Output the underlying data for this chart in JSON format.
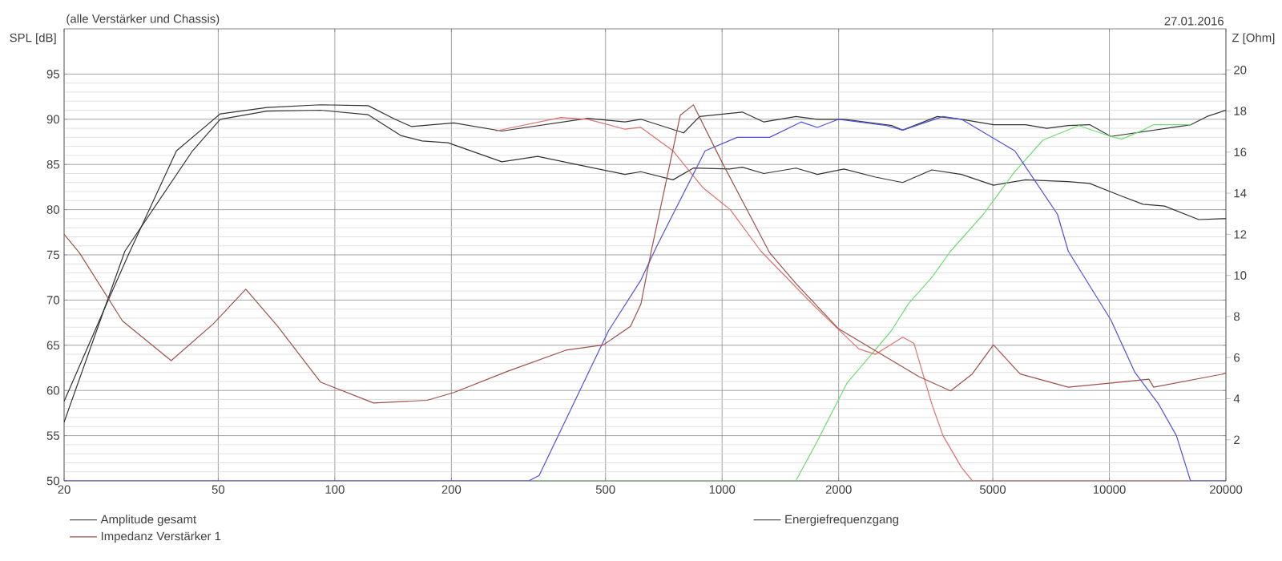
{
  "chart_data": {
    "type": "line",
    "xlabel": null,
    "ylabel": "SPL [dB]",
    "y2label": "Z [Ohm]",
    "annotations": [
      "(alle Verstärker und Chassis)",
      "27.01.2016"
    ],
    "log": "x",
    "grid": true,
    "legend": "bottom",
    "marker": "none",
    "line_style": "solid",
    "xlim": [
      20,
      20000
    ],
    "xticks": [
      20,
      50,
      100,
      200,
      500,
      1000,
      2000,
      5000,
      10000,
      20000
    ],
    "ylim": [
      50,
      100
    ],
    "yticks": [
      50,
      55,
      60,
      65,
      70,
      75,
      80,
      85,
      90,
      95
    ],
    "y2lim": [
      0,
      22
    ],
    "y2ticks": [
      2,
      4,
      6,
      8,
      10,
      12,
      14,
      16,
      18,
      20
    ],
    "series": [
      {
        "name": "Amplitude gesamt",
        "color": "#333333",
        "x": [
          20,
          25.7,
          29.3,
          39,
          50.6,
          66.8,
          91.8,
          122,
          143,
          157.6,
          203,
          270,
          383,
          450,
          561,
          617,
          796,
          875,
          1128,
          1282,
          1552,
          1762,
          2064,
          2748,
          2926,
          3596,
          4150,
          5020,
          6074,
          6892,
          7834,
          8892,
          10092,
          10760,
          12216,
          13012,
          16250,
          17860,
          19660,
          20000
        ],
        "values": [
          58.8,
          69.5,
          75.0,
          86.5,
          90.6,
          91.3,
          91.6,
          91.5,
          90.0,
          89.2,
          89.6,
          88.7,
          null,
          90.1,
          89.7,
          90.0,
          88.5,
          90.3,
          90.8,
          89.7,
          90.3,
          90.0,
          90.0,
          89.3,
          88.8,
          90.3,
          90.0,
          89.4,
          89.4,
          89.0,
          89.3,
          89.4,
          88.1,
          null,
          null,
          null,
          89.4,
          90.3,
          90.9,
          91.0
        ]
      },
      {
        "name": "Energiefrequenzgang",
        "color": "#333333",
        "x": [
          20,
          28.7,
          42.9,
          50.6,
          66.8,
          91.8,
          122,
          148,
          168,
          196,
          270,
          334,
          420,
          561,
          617,
          747,
          843,
          1045,
          1128,
          1282,
          1552,
          1762,
          2064,
          2490,
          2926,
          3480,
          4150,
          5020,
          6074,
          7834,
          8892,
          10760,
          12216,
          13885,
          17020,
          19660,
          20000
        ],
        "values": [
          56.5,
          75.4,
          86.5,
          90.0,
          90.9,
          91.0,
          90.5,
          88.2,
          87.6,
          87.4,
          85.3,
          85.9,
          85.0,
          83.9,
          84.2,
          83.3,
          84.6,
          84.5,
          84.7,
          84.0,
          84.6,
          83.9,
          84.5,
          83.6,
          83.0,
          84.4,
          83.9,
          82.7,
          83.3,
          83.1,
          82.9,
          81.5,
          80.6,
          80.4,
          78.9,
          79.0,
          79.0
        ]
      },
      {
        "color": "#70dc70",
        "x": [
          330,
          1550,
          1762,
          2100,
          2400,
          2735,
          3030,
          3480,
          3890,
          4730,
          5700,
          6740,
          8340,
          10092,
          10760,
          12216,
          13012,
          16250
        ],
        "values": [
          50,
          50,
          54.4,
          60.8,
          63.7,
          66.6,
          69.6,
          72.5,
          75.4,
          79.5,
          84.2,
          87.7,
          89.3,
          88.1,
          87.8,
          88.8,
          89.4,
          89.4
        ]
      },
      {
        "color": "#e07070",
        "x": [
          260,
          383,
          450,
          561,
          617,
          747,
          894,
          1050,
          1260,
          1762,
          2255,
          2490,
          2926,
          3130,
          3480,
          3720,
          4150,
          4430,
          16000
        ],
        "values": [
          88.7,
          90.2,
          90.0,
          88.9,
          89.1,
          86.5,
          82.4,
          80.0,
          75.4,
          69.0,
          64.6,
          64.0,
          65.9,
          65.2,
          58.5,
          55.0,
          51.5,
          50.0,
          50.0
        ]
      },
      {
        "color": "#5050e0",
        "x": [
          20,
          317,
          337,
          509,
          617,
          679,
          904,
          1094,
          1327,
          1600,
          1762,
          2000,
          2660,
          2926,
          3720,
          4150,
          5700,
          7345,
          7834,
          10092,
          11640,
          13400,
          14900,
          16200,
          20000
        ],
        "values": [
          50,
          50,
          50.6,
          66.6,
          72.2,
          76.0,
          86.5,
          88.0,
          88.0,
          89.7,
          89.1,
          90.0,
          89.3,
          88.8,
          90.3,
          90.0,
          86.5,
          79.5,
          75.4,
          67.8,
          62.0,
          58.5,
          55.0,
          50.0,
          50.0
        ]
      },
      {
        "name": "Impedanz Verstärker 1",
        "color": "#a0504b",
        "axis": "y2",
        "x": [
          20,
          21.9,
          28.3,
          37.8,
          48.6,
          58.9,
          71.2,
          91.8,
          126,
          173,
          203,
          279,
          395,
          494,
          580,
          617,
          655,
          780,
          843,
          1000,
          1327,
          1552,
          2000,
          3218,
          3891,
          4424,
          5020,
          5886,
          7834,
          10760,
          12650,
          13012,
          19660,
          20000
        ],
        "values": [
          12.0,
          11.1,
          7.78,
          5.85,
          7.65,
          9.33,
          7.52,
          4.81,
          3.79,
          3.92,
          4.3,
          5.33,
          6.36,
          6.62,
          7.52,
          8.6,
          11.1,
          17.8,
          18.3,
          15.5,
          11.1,
          9.6,
          7.4,
          5.08,
          4.38,
          5.2,
          6.62,
          5.2,
          4.56,
          4.81,
          4.95,
          4.56,
          5.2,
          5.25
        ]
      }
    ]
  }
}
